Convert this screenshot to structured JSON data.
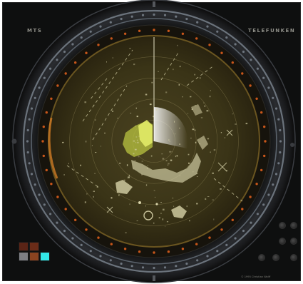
{
  "panel": {
    "brand_left": "MTS",
    "brand_right": "TELEFUNKEN",
    "copyright": "© 1995 Christian Wolff"
  },
  "radar": {
    "bezel_color": "#1b1c1e",
    "bezel_ring_color": "#5f6770",
    "scope_color": "#3a3417",
    "scale_marker_color": "#c8561a",
    "echo_color": "#d7d2a8",
    "echo_bright_color": "#cfe45a",
    "sweep_line_color": "#ffffff",
    "range_rings": 4
  },
  "palette": {
    "swatches": [
      {
        "name": "dark-red",
        "color": "#5a2416"
      },
      {
        "name": "brown-red",
        "color": "#6a2c18"
      },
      {
        "name": "grey",
        "color": "#7d7f84"
      },
      {
        "name": "rust",
        "color": "#8a4320"
      },
      {
        "name": "cyan",
        "color": "#33e6e6"
      }
    ]
  }
}
